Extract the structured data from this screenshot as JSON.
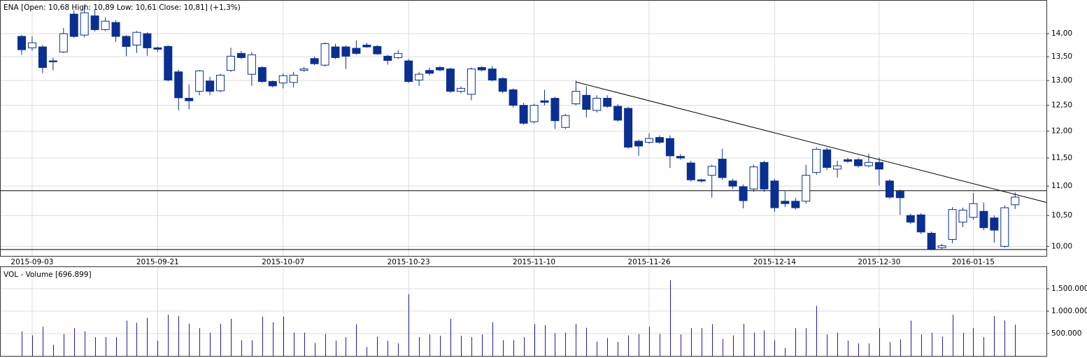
{
  "chart_data": [
    {
      "type": "candlestick",
      "title": "ENA [Open: 10,68  High: 10,89  Low: 10,61  Close: 10,81] (+1,3%)",
      "categories": [
        null,
        "2015-09-03",
        null,
        null,
        null,
        null,
        null,
        null,
        null,
        null,
        null,
        null,
        null,
        "2015-09-21",
        null,
        null,
        null,
        null,
        null,
        null,
        null,
        null,
        null,
        null,
        null,
        "2015-10-07",
        null,
        null,
        null,
        null,
        null,
        null,
        null,
        null,
        null,
        null,
        null,
        "2015-10-23",
        null,
        null,
        null,
        null,
        null,
        null,
        null,
        null,
        null,
        null,
        null,
        "2015-11-10",
        null,
        null,
        null,
        null,
        null,
        null,
        null,
        null,
        null,
        null,
        "2015-11-26",
        null,
        null,
        null,
        null,
        null,
        null,
        null,
        null,
        null,
        null,
        null,
        "2015-12-14",
        null,
        null,
        null,
        null,
        null,
        null,
        null,
        null,
        null,
        "2015-12-30",
        null,
        null,
        null,
        null,
        null,
        null,
        null,
        null,
        "2016-01-15",
        null,
        null,
        null,
        null
      ],
      "open": [
        13.94,
        13.69,
        13.71,
        13.41,
        13.6,
        14.44,
        13.97,
        14.4,
        14.09,
        14.25,
        13.94,
        13.75,
        14.0,
        13.69,
        13.72,
        13.18,
        12.64,
        12.78,
        12.99,
        12.79,
        13.21,
        13.57,
        13.13,
        13.27,
        12.98,
        12.95,
        12.96,
        13.21,
        13.46,
        13.32,
        13.71,
        13.71,
        13.68,
        13.75,
        13.72,
        13.51,
        13.48,
        13.41,
        13.01,
        13.21,
        13.27,
        13.24,
        12.78,
        12.72,
        13.27,
        13.24,
        13.04,
        12.81,
        12.5,
        12.18,
        12.59,
        12.64,
        12.07,
        12.53,
        12.7,
        12.4,
        12.64,
        12.48,
        12.44,
        11.81,
        11.79,
        11.88,
        11.86,
        11.53,
        11.41,
        11.11,
        11.19,
        11.48,
        11.09,
        10.99,
        10.95,
        11.42,
        11.09,
        10.74,
        10.74,
        10.74,
        11.24,
        11.65,
        11.3,
        11.47,
        11.47,
        11.36,
        11.42,
        11.09,
        10.91,
        10.5,
        10.51,
        10.21,
        9.98,
        10.11,
        10.39,
        10.47,
        10.57,
        10.46,
        10.0,
        10.68
      ],
      "high": [
        13.97,
        13.94,
        13.75,
        13.48,
        14.13,
        14.53,
        14.65,
        14.55,
        14.36,
        14.3,
        13.97,
        14.06,
        14.03,
        13.72,
        13.75,
        13.22,
        12.92,
        13.22,
        13.08,
        13.14,
        13.69,
        13.62,
        13.6,
        13.3,
        13.0,
        13.15,
        13.18,
        13.28,
        13.5,
        13.81,
        13.78,
        13.74,
        13.85,
        13.8,
        13.75,
        13.54,
        13.64,
        13.45,
        13.18,
        13.27,
        13.3,
        13.27,
        12.88,
        13.27,
        13.3,
        13.3,
        13.07,
        12.84,
        12.55,
        12.53,
        12.81,
        12.67,
        12.33,
        13.0,
        12.88,
        12.7,
        12.7,
        12.52,
        12.47,
        11.84,
        11.96,
        11.92,
        11.92,
        11.57,
        11.45,
        11.13,
        11.38,
        11.67,
        11.13,
        11.03,
        11.38,
        11.45,
        11.13,
        10.91,
        10.8,
        11.38,
        11.7,
        11.69,
        11.45,
        11.5,
        11.5,
        11.58,
        11.51,
        11.12,
        10.94,
        10.53,
        10.54,
        10.24,
        10.04,
        10.64,
        10.63,
        10.88,
        10.72,
        10.5,
        10.67,
        10.89
      ],
      "low": [
        13.54,
        13.63,
        13.15,
        13.21,
        13.58,
        13.91,
        13.92,
        14.05,
        14.06,
        13.82,
        13.51,
        13.58,
        13.52,
        13.6,
        12.98,
        12.4,
        12.42,
        12.7,
        12.7,
        12.76,
        13.18,
        13.45,
        12.89,
        12.95,
        12.86,
        12.84,
        12.86,
        13.18,
        13.32,
        13.29,
        13.45,
        13.24,
        13.54,
        13.69,
        13.54,
        13.33,
        13.45,
        12.95,
        12.89,
        13.1,
        13.19,
        12.75,
        12.74,
        12.6,
        13.19,
        12.98,
        12.74,
        12.46,
        12.12,
        12.15,
        12.5,
        12.04,
        12.04,
        12.5,
        12.26,
        12.36,
        12.45,
        12.18,
        11.67,
        11.54,
        11.76,
        11.76,
        11.32,
        11.47,
        11.08,
        11.06,
        10.8,
        11.11,
        10.95,
        10.62,
        10.9,
        10.9,
        10.56,
        10.64,
        10.6,
        10.7,
        11.2,
        11.28,
        11.15,
        11.41,
        11.33,
        11.33,
        11.01,
        10.78,
        10.51,
        10.36,
        10.2,
        9.94,
        9.95,
        10.05,
        10.31,
        10.43,
        10.26,
        10.06,
        9.98,
        10.61
      ],
      "close": [
        13.65,
        13.8,
        13.27,
        13.39,
        14.0,
        13.94,
        14.47,
        14.09,
        14.28,
        13.94,
        13.72,
        14.03,
        13.69,
        13.66,
        13.01,
        12.65,
        12.59,
        13.2,
        12.78,
        13.11,
        13.51,
        13.48,
        13.54,
        12.98,
        12.89,
        13.1,
        13.11,
        13.24,
        13.35,
        13.78,
        13.48,
        13.51,
        13.57,
        13.71,
        13.56,
        13.42,
        13.57,
        12.98,
        13.13,
        13.15,
        13.22,
        12.78,
        12.84,
        13.24,
        13.22,
        13.01,
        12.78,
        12.5,
        12.15,
        12.5,
        12.56,
        12.2,
        12.3,
        12.78,
        12.42,
        12.64,
        12.48,
        12.21,
        11.7,
        11.72,
        11.86,
        11.79,
        11.54,
        11.5,
        11.11,
        11.09,
        11.35,
        11.15,
        11.0,
        10.75,
        11.34,
        10.95,
        10.63,
        10.7,
        10.63,
        11.19,
        11.66,
        11.33,
        11.36,
        11.44,
        11.36,
        11.42,
        11.3,
        10.81,
        10.8,
        10.39,
        10.23,
        9.96,
        10.01,
        10.6,
        10.59,
        10.7,
        10.3,
        10.26,
        10.63,
        10.81
      ],
      "color": "#0b2f91",
      "up_color": "#ffffff",
      "log_scale": true,
      "grid": true,
      "ylim": [
        9.85,
        14.75
      ],
      "yticks": [
        {
          "value": 10,
          "label": "10,00"
        },
        {
          "value": 10.5,
          "label": "10,50"
        },
        {
          "value": 11,
          "label": "11,00"
        },
        {
          "value": 11.5,
          "label": "11,50"
        },
        {
          "value": 12,
          "label": "12,00"
        },
        {
          "value": 12.5,
          "label": "12,50"
        },
        {
          "value": 13,
          "label": "13,00"
        },
        {
          "value": 13.5,
          "label": "13,50"
        },
        {
          "value": 14,
          "label": "14,00"
        }
      ],
      "hlines": [
        10.92,
        9.95
      ],
      "trendline": {
        "x": [
          53,
          98
        ],
        "y": [
          12.97,
          10.72
        ]
      }
    },
    {
      "type": "bar",
      "title": "VOL - Volume [696.899]",
      "values": [
        550000,
        460000,
        650000,
        250000,
        490000,
        620000,
        550000,
        420000,
        420000,
        420000,
        790000,
        740000,
        850000,
        340000,
        920000,
        890000,
        720000,
        620000,
        520000,
        720000,
        830000,
        350000,
        350000,
        880000,
        750000,
        880000,
        520000,
        520000,
        290000,
        490000,
        340000,
        420000,
        710000,
        200000,
        430000,
        340000,
        280000,
        1380000,
        420000,
        480000,
        450000,
        830000,
        450000,
        420000,
        480000,
        750000,
        350000,
        350000,
        420000,
        710000,
        690000,
        510000,
        520000,
        720000,
        630000,
        320000,
        400000,
        310000,
        460000,
        490000,
        650000,
        490000,
        1690000,
        480000,
        620000,
        620000,
        710000,
        380000,
        460000,
        720000,
        520000,
        570000,
        350000,
        180000,
        620000,
        620000,
        1120000,
        480000,
        520000,
        340000,
        280000,
        280000,
        620000,
        310000,
        370000,
        790000,
        480000,
        520000,
        430000,
        920000,
        520000,
        620000,
        420000,
        890000,
        790000,
        696899
      ],
      "color": "#1c1ca8",
      "grid": true,
      "ylim": [
        0,
        1970000
      ],
      "yticks": [
        {
          "value": 500000,
          "label": "500.000"
        },
        {
          "value": 1000000,
          "label": "1.000.000"
        },
        {
          "value": 1500000,
          "label": "1.500.000"
        }
      ]
    }
  ]
}
